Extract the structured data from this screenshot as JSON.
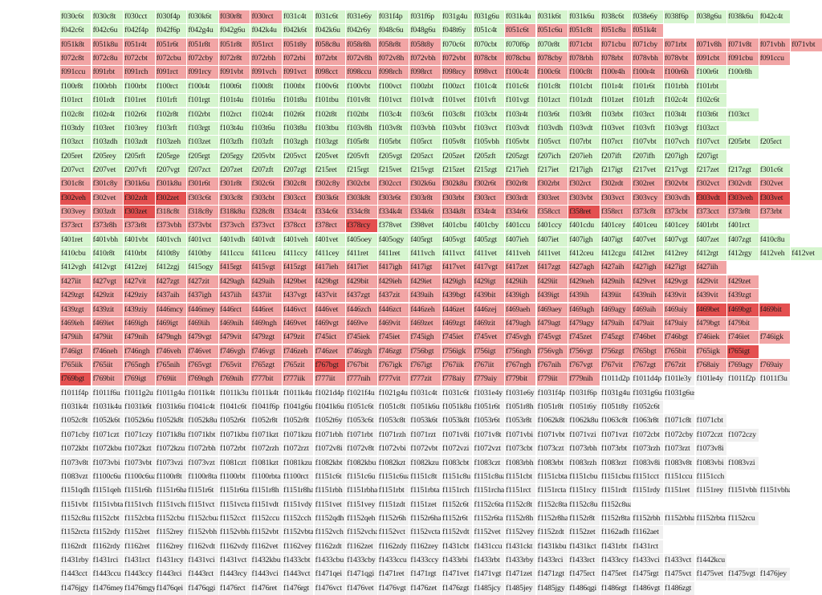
{
  "colors": {
    "G": "#d6f5cf",
    "R": "#f2a5a5",
    "D": "#e45050",
    "W": "#f0f0f0"
  },
  "rows": [
    "f030c6t f030c8t f030cct f030f4p f030k6t f030r8t f030rct f031c4t f031c6t f031e6y f031f4p f031f6p f031g4u f031g6u f031k4u f031k6t f031k6u f038c6t f038e6y f038f6p f038g6u f038k6u f042c4t",
    "f042c6t f042c6u f042f4p f042f6p f042g4u f042g6u f042k4u f042k6t f042k6u f042r6y f048c6u f048g6u f048t6y f051c4t f051c6t f051c6u f051c8t f051c8u f051k4t",
    "f051k8t f051k8u f051r4t f051r6t f051r8t f051r8t f051rct f051t8y f058c8u f058r8h f058r8t f058t8y f070c6t f070cbt f070f6p f070r8t f071cbt f071cbu f071cby f071rbt f071v8h f071v8t f071vbh f071vbt",
    "f072c8t f072c8u f072cbt f072cbu f072cby f072r8t f072rbh f072rbi f072rbt f072v8h f072v8h f072vbh f072vbt f078cbt f078cbu f078cby f078rbh f078rbt f078vbh f078vbt f091cbt f091cbu f091ccu",
    "f091ccu f091rbt f091rch f091rct f091rcy f091vbt f091vch f091vct f098cct f098ccu f098rch f098rct f098rcy f098vct f100c4t f100c6t f100c8t f100r4h f100r4t f100r6h f100r6t f100r8h",
    "f100r8t f100rbh f100rbt f100rct f100t4t f100t6t f100t8t f100tbt f100v6t f100vbt f100vct f100zbt f100zct f101c4t f101c6t f101c8t f101cbt f101r4t f101r6t f101rbh f101rbt",
    "f101rct f101rdt f101ret f101rft f101rgt f101t4u f101t6u f101t8u f101tbu f101v8t f101vct f101vdt f101vet f101vft f101vgt f101zct f101zdt f101zet f101zft f102c4t f102c6t",
    "f102c8t f102r4t f102r6t f102r8t f102rbt f102rct f102t4t f102t6t f102t8t f102tbt f103c4t f103c6t f103c8t f103cbt f103r4t f103r6t f103r8t f103rbt f103rct f103t4t f103t6t f103tct",
    "f103tdy f103ret f103rey f103rft f103rgt f103t4u f103t6u f103t8u f103tbu f103v8h f103v8t f103vbh f103vbt f103vct f103vdt f103vdh f103vdt f103vet f103vft f103vgt f103zct",
    "f103zct f103zdh f103zdt f103zeh f103zet f103zfh f103zft f103zgh f103zgt f105r8t f105rbt f105rct f105v8t f105vbh f105vbt f105vct f107rbt f107rct f107vbt f107vch f107vct f205rbt f205rct",
    "f205ret f205rey f205rft f205rge f205rgt f205rgy f205vbt f205vct f205vet f205vft f205vgt f205zct f205zet f205zft f205zgt f207ich f207ieh f207ift f207ifh f207igh f207igt",
    "f207vct f207vet f207vft f207vgt f207zct f207zet f207zft f207zgt f215ret f215rgt f215vet f215vgt f215zet f215zgt f217ieh f217iet f217igh f217igt f217vet f217vgt f217zet f217zgt f301c6t",
    "f301c8t f301c8y f301k6u f301k8u f301r6t f301r8t f302c6t f302c8t f302c8y f302cbt f302cct f302k6u f302k8u f302r6t f302r8t f302rbt f302rct f302rdt f302ret f302vbt f302vct f302vdt f302vet",
    "f302veh f302vet f302zdt f302zet f303c6t f303c8t f303cbt f303cct f303k6t f303k8t f303r6t f303r8t f303rbt f303rct f303rdt f303ret f303vbt f303vct f303vcy f303vdh f303vdt f303veh f303vet",
    "f303vey f303zdt f303zet f318c8t f318c8y f318k8u f328c8t f334c4t f334c6t f334c8t f334k4t f334k6t f334k8t f334r4t f334r6t f358cct f358ret f358rct f373c8t f373cbt f373cct f373r8t f373rbt",
    "f373rct f373r8h f373r8t f373vbh f373vbt f373vch f373vct f378cct f378rct f378rcy f378vet f398vet f401cbu f401cby f401ccu f401ccy f401cdu f401cey f401ceu f401cey f401rbt f401rct",
    "f401ret f401vbh f401vbt f401vch f401vct f401vdh f401vdt f401veh f401vet f405oey f405ogy f405rgt f405vgt f405zgt f407ieh f407iet f407igh f407igt f407vet f407vgt f407zet f407zgt f410c8u",
    "f410cbu f410r8t f410rbt f410t8y f410tby f411ccu f411ceu f411ccy f411cey f411ret f411ret f411vch f411vct f411vet f411veh f411vet f412ceu f412cgu f412ret f412rey f412rgt f412rgy f412veh f412vet",
    "f412vgh f412vgt f412zej f412zgj f415ogy f415rgt f415vgt f415zgt f417ieh f417iet f417igh f417igt f417vet f417vgt f417zet f417zgt f427agh f427aih f427igh f427igt f427iih",
    "f427iit f427vgt f427vit f427zgt f427zit f429agh f429aih f429bet f429bgt f429bit f429ieh f429iet f429igh f429igt f429iih f429iit f429neh f429nih f429vet f429vgt f429vit f429zet",
    "f429zgt f429zit f429ziy f437aih f437igh f437iih f437iit f437vgt f437vit f437zgt f437zit f439aih f439bgt f439bit f439igh f439igt f439ih f439iit f439nih f439vit f439vit f439zgt",
    "f439zgt f439zit f439ziy f446mcy f446mey f446rct f446ret f446vct f446vet f446zch f446zct f446zeh f446zet f446zej f469aeh f469aey f469agh f469agy f469aih f469aiy f469bet f469bgt f469bit",
    "f469ieh f469iet f469igh f469igt f469iih f469nih f469ngh f469vet f469vgt f469ve f469vit f469zet f469zgt f469zit f479agh f479agt f479agy f479aih f479ait f479aiy f479bgt f479bit",
    "f479iih f479iit f479nih f479ngh f479vgt f479vit f479zgt f479zit f745ict f745iek f745iet f745igh f745iet f745vet f745vgh f745vgt f745zet f745zgt f746bet f746bgt f746iek f746iet f746igk",
    "f746igt f746neh f746ngh f746veh f746vet f746vgh f746vgt f746zeh f746zet f746zgh f746zgt f756bgt f756igk f756igt f756ngh f756vgh f756vgt f756zgt f765bgt f765bit f765igk f765igt",
    "f765iik f765iit f765ngh f765nih f765vgt f765vit f765zgt f765zit f767bgt f767bit f767igk f767igt f767iik f767iit f767ngh f767nih f767vgt f767vit f767zgt f767zit f768aiy f769agy f769aiy",
    "f769bgt f769bit f769igt f769iit f769ngh f769nih f777bit f777iik f777iit f777nih f777vit f777zit f778aiy f779aiy f779bit f779iit f779nih f1011d2p f1011d4p f101le3y f101le4y f1011f2p f1011f3u",
    "f1011f4p f1011f6u f1011g2u f1011g4u f1011k4t f1011k3u f1011k4t f1011k4u f1021d4p f1021f4u f1021g4u f1031c4t f1031c6t f1031e4y f1031e6y f1031f4p f1031f6p f1031g4u f1031g6u f1031g6us",
    "f1031k4t f1031k4u f1031k6t f1031k6u f1041c4t f1041c6t f1041f6p f1041g6u f1041k6u f1051c6t f1051c8t f1051k6u f1051k8u f1051r6t f1051r8h f1051r8t f1051t6y f1051t8y f1052c6t",
    "f1052c8t f1052k6t f1052k6u f1052k8t f1052k8u f1052r6t f1052r8t f1052r8t f1052t6y f1053c6t f1053c8t f1053k6t f1053k8t f1053r6t f1053r8t f1062k8t f1062k8u f1063c8t f1063r8t f1071c8t f1071cbt",
    "f1071cby f1071czt f1071czy f1071k8u f1071kbt f1071kbu f1071kzt f1071kzu f1071rbh f1071rbt f1071rzh f1071rzt f1071v8i f1071v8t f1071vbi f1071vbt f1071vzi f1071vzt f1072cbt f1072cby f1072czt f1072czy",
    "f1072kbt f1072kbu f1072kzt f1072kzu f1072rbh f1072rbt f1072rzh f1072rzt f1072v8i f1072v8t f1072vbi f1072vbt f1072vzi f1072vzt f1073cbt f1073czt f1073rbh f1073rbt f1073rzh f1073rzt f1073v8i",
    "f1073v8t f1073vbi f1073vbt f1073vzi f1073vzt f1081czt f1081kzt f1081kzu f1082kbt f1082kbu f1082kzt f1082kzu f1083cbt f1083czt f1083rbh f1083rbt f1083rzh f1083rzt f1083v8i f1083v8t f1083vbi f1083vzi",
    "f1083vzt f1100c6u f1100c6ua f1100r8t f1100r8ta f1100rbt f1100rbta f1100rct f1151c6t f1151c6u f1151c6ua f1151c8t f1151c8u f1151c8ua f1151cbt f1151cbta f1151cbu f1151cbua f1151cct f1151ccu f1151cch",
    "f1151qdh f1151qeh f1151r6h f1151r6ha f1151r6t f1151r6ta f1151r8h f1151r8ha f1151rbh f1151rbha f1151rbt f1151rbta f1151rch f1151rcha f1151rct f1151rcta f1151rcy f1151rdt f1151rdy f1151ret f1151rey f1151vbh f1151vbha",
    "f1151vbt f1151vbta f1151vch f1151vcha f1151vct f1151vcta f1151vdt f1151vdy f1151vet f1151vey f1151zdt f1151zet f1152c6t f1152c6ta f1152c8t f1152c8ta f1152c8u f1152c8ua",
    "f1152c8ua f1152cbt f1152cbta f1152cbu f1152cbua f1152cct f1152ccu f1152cch f1152qdh f1152qeh f1152r6h f1152r6ha f1152r6t f1152r6ta f1152r8h f1152r8ha f1152r8t f1152r8ta f1152rbh f1152rbha f1152rbta f1152rcu",
    "f1152rcta f1152rdy f1152ret f1152rey f1152vbh f1152vbha f1152vbt f1152vbta f1152vch f1152vcha f1152vct f1152vcta f1152vdt f1152vet f1152vey f1152zdt f1152zet f1162adh f1162aet",
    "f1162rdt f1162rdy f1162ret f1162rey f1162vdt f1162vdy f1162vet f1162vey f1162zdt f1162zet f1162zdy f1162zey f1431cbt f1431ccu f1431ckt f1431kbu f1431kct f1431rbt f1431rct",
    "f1431rby f1431rci f1431rct f1431rcy f1431vci f1431vct f1432kbu f1433cbt f1433cbu f1433cby f1433ccu f1433ccy f1433rbi f1433rbt f1433rby f1433rci f1433rct f1433rcy f1433vci f1433vct f1442kcu",
    "f1443cct f1443ccu f1443ccy f1443rci f1443rct f1443rcy f1443vci f1443vct f1471qei f1471qgi f1471ret f1471rgt f1471vet f1471vgt f1471zet f1471zgt f1475rct f1475ret f1475rgt f1475vct f1475vet f1475vgt f1476jey",
    "f1476jgy f1476mey f1476mgy f1476qei f1476qgi f1476rct f1476ret f1476rgt f1476vct f1476vet f1476vgt f1476zet f1476zgt f1485jcy f1485jey f1485jgy f1486qgi f1486rgt f1486vgt f1486zgt"
  ],
  "palette_rows": [
    "GGGGGRRGGGGGGGGGGGGGGGGG",
    "GGGGGGGGGGGGGGRRRRRRRRRR",
    "RRRRRRRRRRRRGGGGRRRRRRRR",
    "RRRRRRRRRRRRRRRRRRRRRRRRR",
    "RRRRRRRRRRRRRRRRRRRRGGGGG",
    "GGGGGGGGGGGGGGGGGGGGGGGG",
    "GGGGGGGGGGGGGGGGGGGGGGGG",
    "GGGGGGGGGGGGGGGGGGGGGGGG",
    "GGGGGGGGGGGGGGGGGGGGGGGG",
    "GGGGGGGGGGGGGGGGGGGGGGGG",
    "GGGGGGGGGGGGGGGGGGGGGGGG",
    "GGGGGGGGGGGGGGGGGGGGGGGG",
    "RRRRRRRRRRRRRRRRRRRRRRRRD",
    "DRDDRRRRRRRRRRRRRRRRDDDDD",
    "RRDRRRRRRRRRRRRRDRRRRRRR",
    "RRRRRRRRRDGGGGGGGGGGGGGG",
    "GGGGGGGGGGGGGGGGGGGGGGGG",
    "GGGGGGGGGGGGGGGGGGGGGGGG",
    "GGGGGRRRRRRRRRRRRRRRRRRR",
    "RRRRRRRRRRRRRRRRRRRRRRRR",
    "RRRRRRRRRRRRRRRRRRRRRRRR",
    "RRRRRRRRRRRRRRRRRRRRDDDDD",
    "RRRRRRRRRRRRRRRRRRRRRRRR",
    "RRRRRRRRRRRRRRRRRRRRRRRRR",
    "RRRRRRRRRRRRRRRRRRRRRDRR",
    "RRRRRRRRDRRRRRRRRRRRRRRR",
    "DRRRRRRRRRRRRRRRRWWWWWWW"
  ]
}
